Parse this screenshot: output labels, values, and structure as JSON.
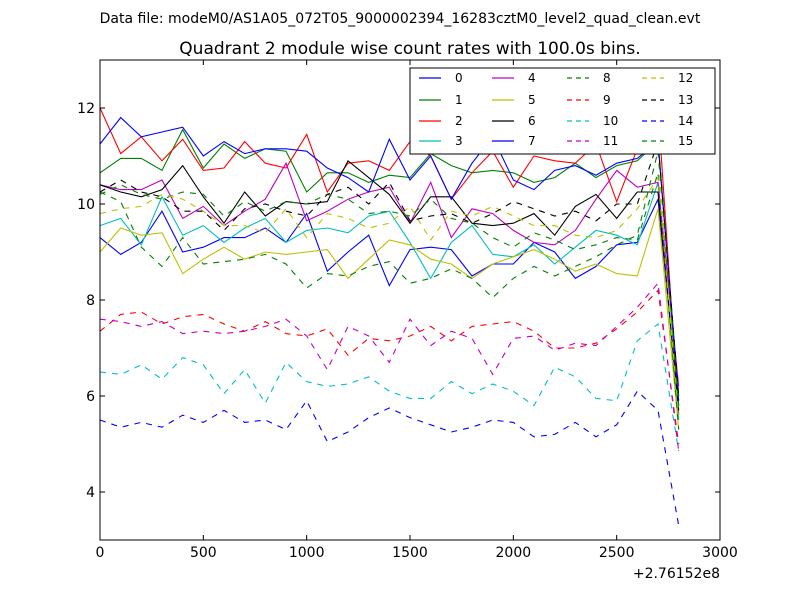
{
  "figure": {
    "suptitle": "Data file: modeM0/AS1A05_072T05_9000002394_16283cztM0_level2_quad_clean.evt"
  },
  "chart_data": {
    "type": "line",
    "title": "Quadrant 2 module wise count rates with 100.0s bins.",
    "xlabel": "",
    "ylabel": "",
    "x_offset_label": "+2.76152e8",
    "xlim": [
      0,
      3000
    ],
    "ylim": [
      3,
      13
    ],
    "xticks": [
      0,
      500,
      1000,
      1500,
      2000,
      2500,
      3000
    ],
    "yticks": [
      4,
      6,
      8,
      10,
      12
    ],
    "legend_position": "top-right",
    "x": [
      0,
      100,
      200,
      300,
      400,
      500,
      600,
      700,
      800,
      900,
      1000,
      1100,
      1200,
      1300,
      1400,
      1500,
      1600,
      1700,
      1800,
      1900,
      2000,
      2100,
      2200,
      2300,
      2400,
      2500,
      2600,
      2700,
      2800
    ],
    "series": [
      {
        "name": "0",
        "color": "#0000ff",
        "dash": "solid",
        "values": [
          9.3,
          8.95,
          9.2,
          9.85,
          9.0,
          9.1,
          9.3,
          9.3,
          9.5,
          9.2,
          9.8,
          8.6,
          9.0,
          9.35,
          8.3,
          9.05,
          9.1,
          9.05,
          8.5,
          8.75,
          8.75,
          9.2,
          9.0,
          8.45,
          8.7,
          9.15,
          9.2,
          10.1,
          5.8
        ]
      },
      {
        "name": "1",
        "color": "#008000",
        "dash": "solid",
        "values": [
          10.65,
          10.95,
          10.95,
          10.7,
          11.55,
          10.75,
          11.25,
          10.95,
          11.15,
          11.1,
          10.25,
          10.65,
          10.65,
          10.45,
          10.6,
          10.55,
          11.05,
          10.8,
          10.65,
          10.7,
          10.65,
          10.45,
          10.55,
          10.85,
          10.55,
          10.8,
          10.9,
          11.3,
          6.0
        ]
      },
      {
        "name": "2",
        "color": "#ff0000",
        "dash": "solid",
        "values": [
          12.0,
          11.05,
          11.4,
          10.9,
          11.35,
          10.7,
          10.75,
          11.3,
          10.85,
          10.75,
          11.45,
          10.25,
          10.85,
          10.9,
          10.7,
          11.3,
          11.0,
          10.1,
          10.65,
          11.1,
          10.35,
          11.0,
          10.9,
          10.85,
          11.25,
          10.05,
          11.15,
          12.0,
          5.6
        ]
      },
      {
        "name": "3",
        "color": "#00bfbf",
        "dash": "solid",
        "values": [
          9.55,
          9.7,
          9.15,
          10.15,
          9.35,
          9.55,
          9.2,
          9.5,
          9.7,
          9.2,
          9.45,
          9.5,
          9.4,
          9.75,
          9.85,
          9.2,
          8.45,
          9.2,
          9.55,
          8.95,
          8.9,
          9.15,
          8.75,
          9.1,
          9.45,
          9.35,
          9.15,
          10.45,
          5.5
        ]
      },
      {
        "name": "4",
        "color": "#bf00bf",
        "dash": "solid",
        "values": [
          10.4,
          10.3,
          10.3,
          10.5,
          9.7,
          9.95,
          9.55,
          9.85,
          10.1,
          10.85,
          9.65,
          9.85,
          10.1,
          10.25,
          10.35,
          9.6,
          10.45,
          9.3,
          9.9,
          9.8,
          9.45,
          9.2,
          9.15,
          9.45,
          10.1,
          10.7,
          10.35,
          10.45,
          6.2
        ]
      },
      {
        "name": "5",
        "color": "#bfbf00",
        "dash": "solid",
        "values": [
          9.0,
          9.5,
          9.35,
          9.4,
          8.55,
          8.85,
          9.1,
          8.85,
          9.0,
          8.95,
          9.0,
          9.05,
          8.45,
          8.85,
          9.25,
          9.15,
          8.85,
          8.75,
          8.45,
          8.75,
          8.9,
          9.05,
          8.85,
          8.6,
          8.75,
          8.55,
          8.5,
          9.9,
          5.3
        ]
      },
      {
        "name": "6",
        "color": "#000000",
        "dash": "solid",
        "values": [
          10.4,
          10.25,
          10.15,
          10.3,
          10.8,
          10.15,
          9.6,
          10.25,
          9.75,
          10.05,
          10.0,
          10.05,
          10.9,
          10.55,
          10.2,
          9.6,
          10.15,
          10.15,
          9.6,
          9.55,
          9.6,
          9.8,
          9.35,
          9.95,
          10.2,
          9.7,
          10.25,
          10.25,
          5.7
        ]
      },
      {
        "name": "7",
        "color": "#0000ff",
        "dash": "solid",
        "values": [
          11.25,
          11.8,
          11.4,
          11.5,
          11.6,
          11.0,
          11.3,
          11.05,
          11.15,
          11.15,
          11.1,
          10.75,
          10.55,
          10.25,
          11.35,
          10.5,
          11.0,
          10.1,
          10.85,
          11.4,
          10.5,
          10.3,
          10.7,
          10.8,
          10.6,
          10.85,
          10.95,
          11.3,
          5.9
        ]
      },
      {
        "name": "8",
        "color": "#008000",
        "dash": "dashed",
        "values": [
          10.2,
          10.4,
          10.2,
          10.1,
          10.25,
          10.2,
          9.75,
          10.05,
          9.85,
          10.05,
          10.0,
          10.2,
          10.1,
          9.8,
          9.85,
          9.75,
          10.1,
          9.7,
          9.6,
          9.3,
          9.1,
          9.4,
          9.25,
          9.05,
          9.15,
          9.3,
          9.25,
          10.65,
          5.3
        ]
      },
      {
        "name": "9",
        "color": "#ff0000",
        "dash": "dashed",
        "values": [
          7.35,
          7.7,
          7.75,
          7.5,
          7.65,
          7.7,
          7.5,
          7.35,
          7.55,
          7.3,
          7.25,
          7.4,
          6.85,
          7.2,
          7.15,
          7.25,
          7.45,
          7.15,
          7.45,
          7.5,
          7.55,
          7.35,
          7.0,
          7.0,
          7.1,
          7.4,
          7.75,
          8.2,
          5.0
        ]
      },
      {
        "name": "10",
        "color": "#00bfbf",
        "dash": "dashed",
        "values": [
          6.5,
          6.45,
          6.65,
          6.35,
          6.8,
          6.65,
          6.05,
          6.55,
          5.85,
          6.7,
          6.3,
          6.2,
          6.25,
          6.4,
          6.1,
          5.95,
          5.95,
          6.3,
          6.05,
          6.25,
          6.1,
          5.8,
          6.6,
          6.4,
          5.95,
          5.9,
          7.15,
          7.5,
          4.85
        ]
      },
      {
        "name": "11",
        "color": "#bf00bf",
        "dash": "dashed",
        "values": [
          7.6,
          7.55,
          7.45,
          7.55,
          7.3,
          7.35,
          7.3,
          7.35,
          7.45,
          7.6,
          7.25,
          6.55,
          7.45,
          7.25,
          6.7,
          7.6,
          7.05,
          7.35,
          7.2,
          6.45,
          7.2,
          7.25,
          6.95,
          7.1,
          7.05,
          7.45,
          7.85,
          8.35,
          4.85
        ]
      },
      {
        "name": "12",
        "color": "#bfbf00",
        "dash": "dashed",
        "values": [
          9.8,
          9.9,
          9.95,
          10.2,
          10.1,
          9.85,
          9.55,
          9.55,
          9.4,
          9.9,
          9.3,
          9.8,
          9.7,
          9.5,
          9.6,
          9.95,
          9.25,
          9.85,
          9.75,
          9.95,
          9.75,
          9.55,
          9.55,
          9.35,
          9.3,
          9.45,
          9.9,
          10.55,
          5.6
        ]
      },
      {
        "name": "13",
        "color": "#000000",
        "dash": "dashed",
        "values": [
          10.25,
          10.5,
          10.25,
          10.15,
          9.85,
          9.85,
          9.45,
          9.9,
          10.0,
          9.85,
          9.75,
          10.2,
          10.35,
          10.0,
          10.45,
          9.65,
          9.75,
          9.8,
          9.6,
          9.8,
          10.05,
          9.9,
          9.75,
          9.85,
          9.65,
          10.0,
          10.0,
          11.3,
          6.0
        ]
      },
      {
        "name": "14",
        "color": "#0000ff",
        "dash": "dashed",
        "values": [
          5.5,
          5.35,
          5.45,
          5.35,
          5.6,
          5.45,
          5.7,
          5.45,
          5.5,
          5.3,
          5.9,
          5.05,
          5.25,
          5.55,
          5.75,
          5.55,
          5.4,
          5.25,
          5.35,
          5.5,
          5.45,
          5.15,
          5.2,
          5.45,
          5.15,
          5.4,
          6.1,
          5.7,
          3.3
        ]
      },
      {
        "name": "15",
        "color": "#008000",
        "dash": "dashed",
        "values": [
          10.25,
          10.05,
          9.1,
          8.7,
          9.3,
          8.75,
          8.8,
          8.85,
          8.95,
          8.75,
          8.25,
          8.55,
          8.5,
          8.7,
          8.8,
          8.35,
          8.45,
          8.65,
          8.45,
          8.05,
          8.45,
          8.7,
          8.5,
          8.7,
          8.9,
          9.15,
          9.35,
          11.1,
          5.8
        ]
      }
    ]
  }
}
